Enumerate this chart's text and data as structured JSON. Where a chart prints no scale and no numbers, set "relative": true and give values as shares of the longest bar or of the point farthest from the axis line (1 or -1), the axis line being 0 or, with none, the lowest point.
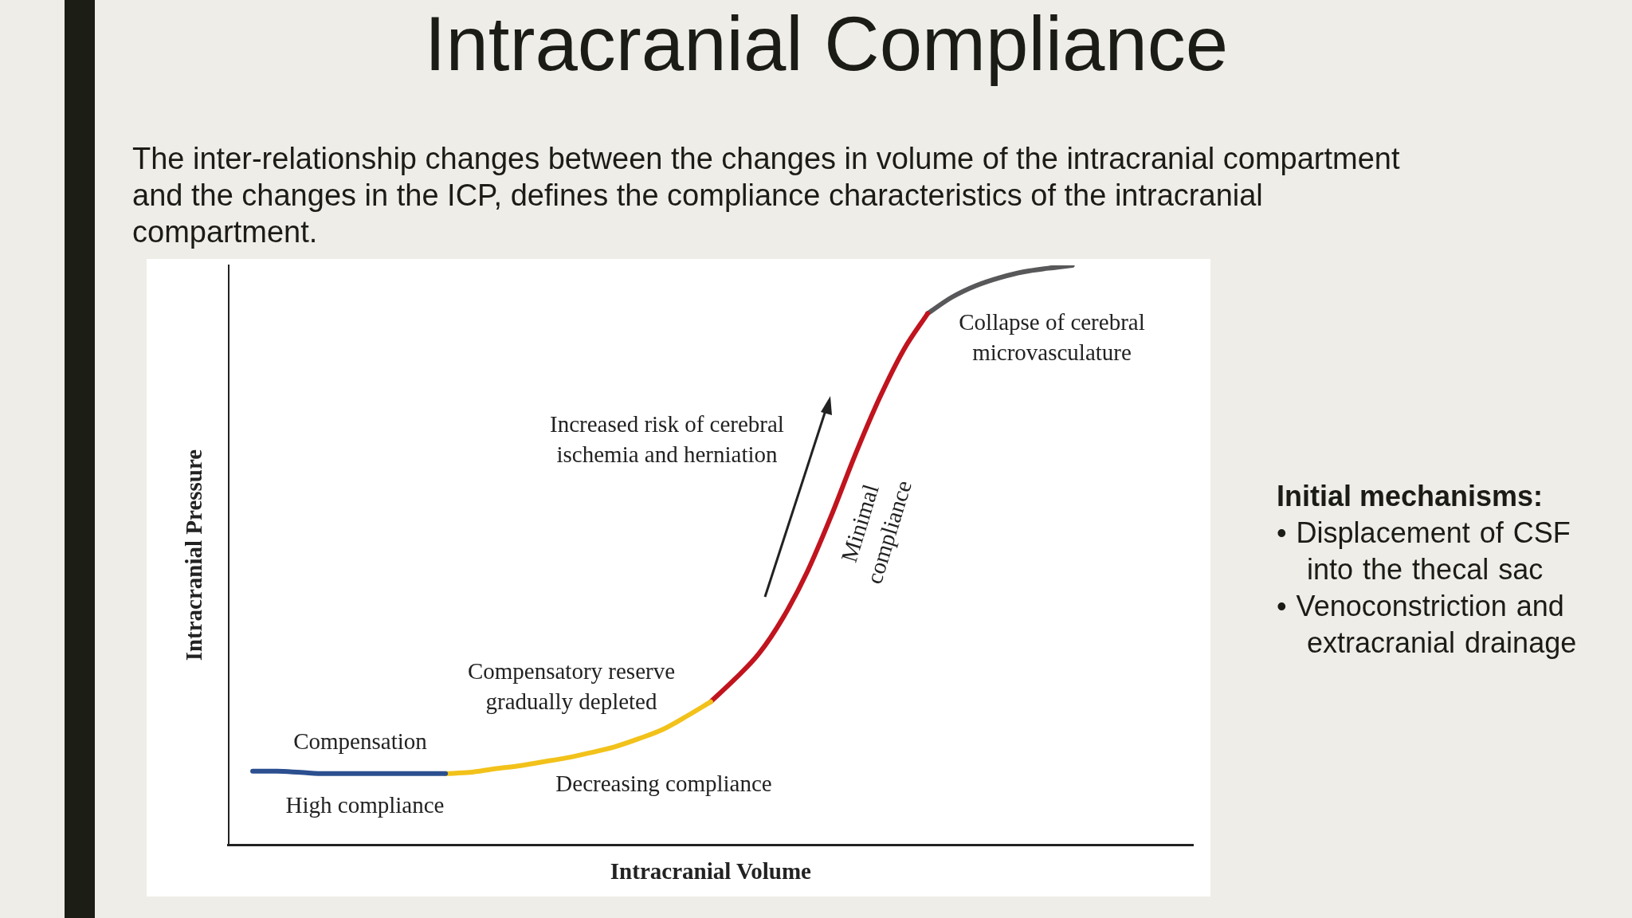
{
  "chart_data": {
    "type": "line",
    "title": "Intracranial Compliance",
    "subtitle": "The inter-relationship changes between the changes in volume of the intracranial compartment and the changes in the ICP, defines the compliance characteristics of the intracranial compartment.",
    "xlabel": "Intracranial Volume",
    "ylabel": "Intracranial Pressure",
    "relative": true,
    "marker": "none",
    "line_style": "solid",
    "categories": [
      null,
      null,
      null,
      null,
      null,
      null,
      null,
      null,
      null,
      null,
      null,
      null,
      null,
      null,
      null,
      null,
      null,
      null,
      null,
      null,
      null,
      null,
      null,
      null,
      null,
      null,
      null,
      null,
      null,
      null,
      null,
      null,
      null,
      null,
      null,
      null,
      null,
      null,
      null,
      null,
      null
    ],
    "series": [
      {
        "color": "#2b4f8f",
        "values": [
          null,
          0.127,
          0.127,
          0.125,
          0.123,
          0.123,
          0.123,
          0.123,
          0.123,
          0.123,
          null,
          null,
          null,
          null,
          null,
          null,
          null,
          null,
          null,
          null,
          null,
          null,
          null,
          null,
          null,
          null,
          null,
          null,
          null,
          null,
          null,
          null,
          null,
          null,
          null,
          null,
          null,
          null,
          null,
          null,
          null
        ]
      },
      {
        "color": "#f2c21b",
        "values": [
          null,
          null,
          null,
          null,
          null,
          null,
          null,
          null,
          null,
          0.123,
          0.125,
          0.131,
          0.136,
          0.143,
          0.15,
          0.159,
          0.169,
          0.183,
          0.199,
          0.222,
          0.247,
          null,
          null,
          null,
          null,
          null,
          null,
          null,
          null,
          null,
          null,
          null,
          null,
          null,
          null,
          null,
          null,
          null,
          null,
          null,
          null
        ]
      },
      {
        "color": "#c0141e",
        "values": [
          null,
          null,
          null,
          null,
          null,
          null,
          null,
          null,
          null,
          null,
          null,
          null,
          null,
          null,
          null,
          null,
          null,
          null,
          null,
          null,
          0.247,
          0.286,
          0.33,
          0.392,
          0.471,
          0.568,
          0.674,
          0.771,
          0.854,
          0.917,
          null,
          null,
          null,
          null,
          null,
          null,
          null,
          null,
          null,
          null,
          null
        ]
      },
      {
        "color": "#58585a",
        "values": [
          null,
          null,
          null,
          null,
          null,
          null,
          null,
          null,
          null,
          null,
          null,
          null,
          null,
          null,
          null,
          null,
          null,
          null,
          null,
          null,
          null,
          null,
          null,
          null,
          null,
          null,
          null,
          null,
          null,
          0.917,
          0.945,
          0.965,
          0.979,
          0.989,
          0.995,
          1,
          null,
          null,
          null,
          null,
          null
        ]
      }
    ],
    "annotations": [
      "Collapse of cerebral microvasculature",
      "Increased risk of cerebral ischemia and herniation",
      "Minimal compliance",
      "Compensatory reserve gradually depleted",
      "Compensation",
      "High compliance",
      "Decreasing compliance",
      "Initial mechanisms:",
      "• Displacement of CSF into the thecal sac",
      "• Venoconstriction and extracranial drainage"
    ]
  }
}
